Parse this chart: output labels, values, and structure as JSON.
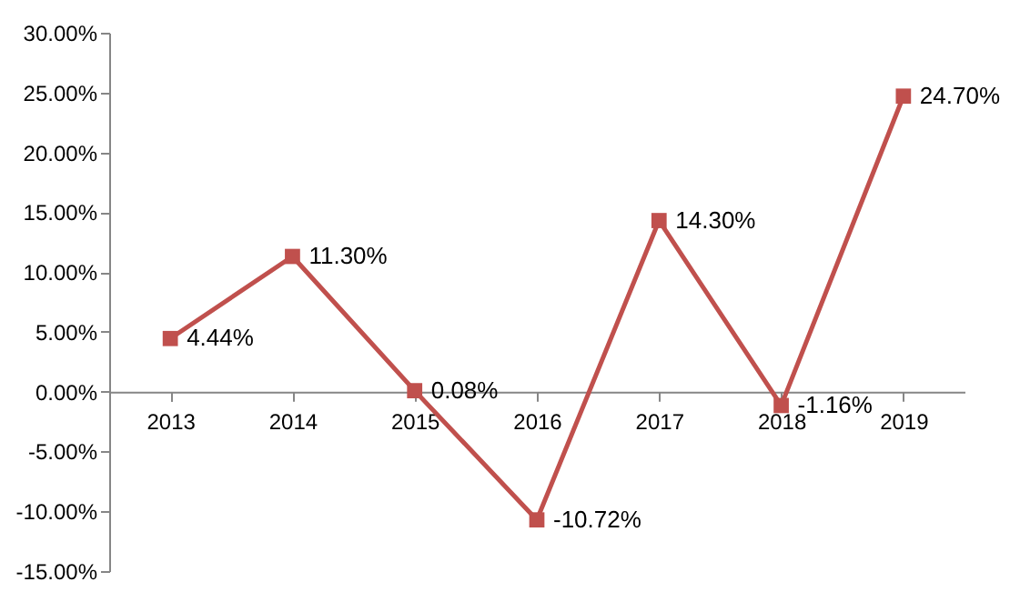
{
  "chart_data": {
    "type": "line",
    "categories": [
      "2013",
      "2014",
      "2015",
      "2016",
      "2017",
      "2018",
      "2019"
    ],
    "series": [
      {
        "color": "#c0504d",
        "values": [
          4.44,
          11.3,
          0.08,
          -10.72,
          14.3,
          -1.16,
          24.7
        ],
        "value_labels": [
          "4.44%",
          "11.30%",
          "0.08%",
          "-10.72%",
          "14.30%",
          "-1.16%",
          "24.70%"
        ]
      }
    ],
    "ylim": [
      -15,
      30
    ],
    "yticks": [
      {
        "value": -15,
        "label": "-15.00%"
      },
      {
        "value": -10,
        "label": "-10.00%"
      },
      {
        "value": -5,
        "label": "-5.00%"
      },
      {
        "value": 0,
        "label": "0.00%"
      },
      {
        "value": 5,
        "label": "5.00%"
      },
      {
        "value": 10,
        "label": "10.00%"
      },
      {
        "value": 15,
        "label": "15.00%"
      },
      {
        "value": 20,
        "label": "20.00%"
      },
      {
        "value": 25,
        "label": "25.00%"
      },
      {
        "value": 30,
        "label": "30.00%"
      }
    ],
    "grid": false,
    "marker": "square",
    "line_style": "solid"
  }
}
